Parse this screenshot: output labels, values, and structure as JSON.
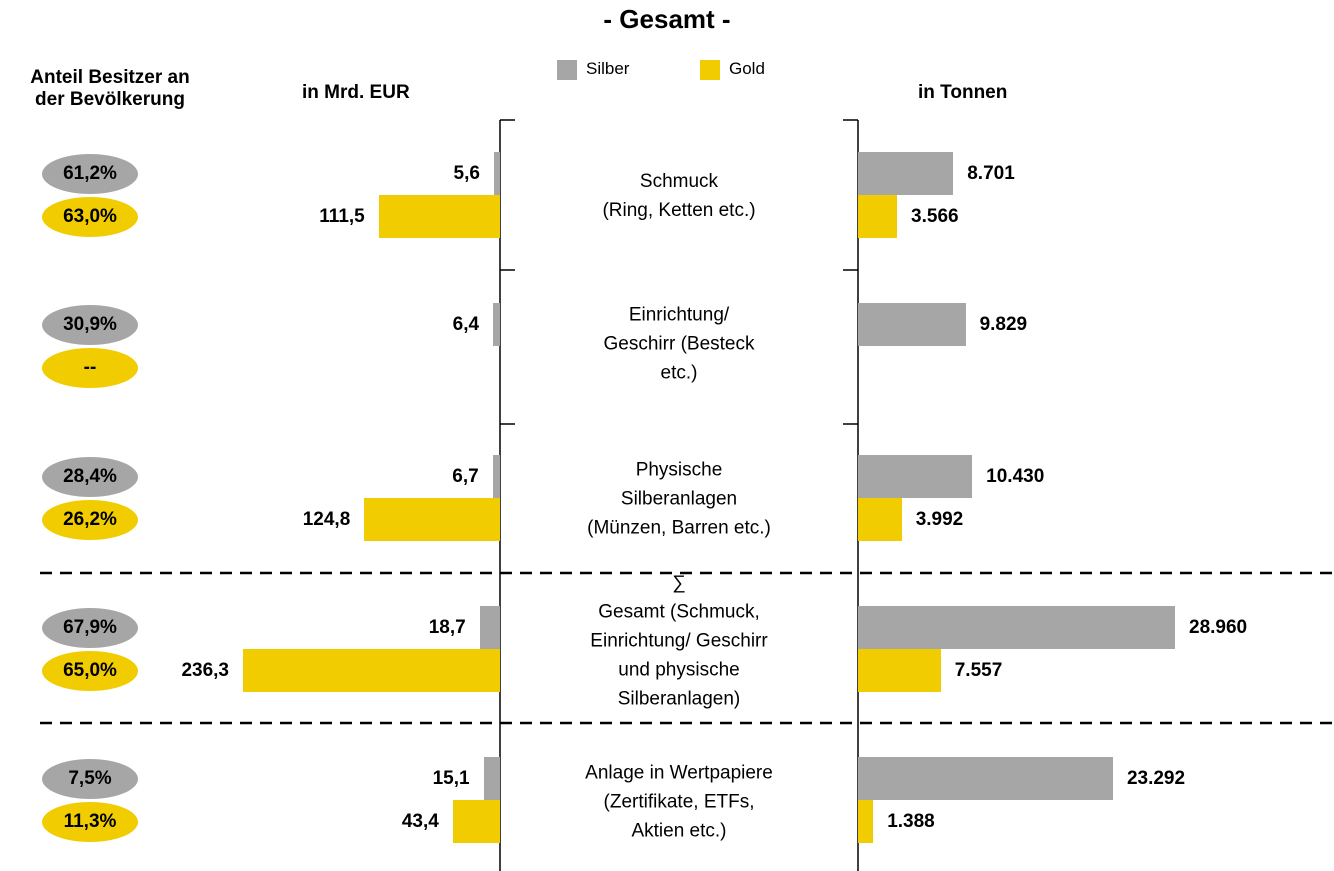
{
  "chart_data": {
    "type": "butterfly",
    "title": "- Gesamt -",
    "share_label": "Anteil Besitzer an\nder Bevölkerung",
    "left_label": "in Mrd. EUR",
    "right_label": "in Tonnen",
    "categories": [
      "Schmuck\n(Ring, Ketten etc.)",
      "Einrichtung/\nGeschirr (Besteck\netc.)",
      "Physische\nSilberanlagen\n(Münzen, Barren etc.)",
      "∑\nGesamt (Schmuck,\nEinrichtung/ Geschirr\nund physische\nSilberanlagen)",
      "Anlage in Wertpapiere\n(Zertifikate, ETFs,\nAktien etc.)"
    ],
    "series": [
      {
        "name": "Silber",
        "color": "#a6a6a6",
        "eur_values": [
          5.6,
          6.4,
          6.7,
          18.7,
          15.1
        ],
        "eur_value_labels": [
          "5,6",
          "6,4",
          "6,7",
          "18,7",
          "15,1"
        ],
        "tonnen_values": [
          8701,
          9829,
          10430,
          28960,
          23292
        ],
        "tonnen_value_labels": [
          "8.701",
          "9.829",
          "10.430",
          "28.960",
          "23.292"
        ],
        "share_values": [
          61.2,
          30.9,
          28.4,
          67.9,
          7.5
        ],
        "share_value_labels": [
          "61,2%",
          "30,9%",
          "28,4%",
          "67,9%",
          "7,5%"
        ]
      },
      {
        "name": "Gold",
        "color": "#f0cc00",
        "eur_values": [
          111.5,
          null,
          124.8,
          236.3,
          43.4
        ],
        "eur_value_labels": [
          "111,5",
          null,
          "124,8",
          "236,3",
          "43,4"
        ],
        "tonnen_values": [
          3566,
          null,
          3992,
          7557,
          1388
        ],
        "tonnen_value_labels": [
          "3.566",
          null,
          "3.992",
          "7.557",
          "1.388"
        ],
        "share_values": [
          63.0,
          null,
          26.2,
          65.0,
          11.3
        ],
        "share_value_labels": [
          "63,0%",
          "--",
          "26,2%",
          "65,0%",
          "11,3%"
        ]
      }
    ]
  }
}
